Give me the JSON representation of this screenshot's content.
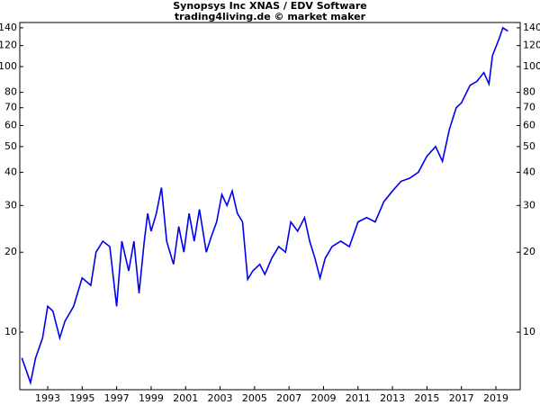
{
  "chart_data": {
    "type": "line",
    "title": "Synopsys Inc XNAS / EDV Software",
    "subtitle": "trading4living.de © market maker",
    "log_scale": true,
    "color": "#0000ee",
    "x": [
      1991.5,
      1992.0,
      1992.3,
      1992.7,
      1993.0,
      1993.3,
      1993.7,
      1994.0,
      1994.5,
      1995.0,
      1995.5,
      1995.8,
      1996.2,
      1996.6,
      1997.0,
      1997.3,
      1997.7,
      1998.0,
      1998.3,
      1998.6,
      1998.8,
      1999.0,
      1999.3,
      1999.6,
      1999.9,
      2000.3,
      2000.6,
      2000.9,
      2001.2,
      2001.5,
      2001.8,
      2002.2,
      2002.5,
      2002.8,
      2003.1,
      2003.4,
      2003.7,
      2004.0,
      2004.3,
      2004.6,
      2004.9,
      2005.3,
      2005.6,
      2006.0,
      2006.4,
      2006.8,
      2007.1,
      2007.5,
      2007.9,
      2008.2,
      2008.5,
      2008.8,
      2009.1,
      2009.5,
      2010.0,
      2010.5,
      2011.0,
      2011.5,
      2012.0,
      2012.5,
      2013.0,
      2013.5,
      2014.0,
      2014.5,
      2015.0,
      2015.5,
      2015.9,
      2016.3,
      2016.7,
      2017.0,
      2017.5,
      2017.9,
      2018.3,
      2018.6,
      2018.8,
      2019.2,
      2019.4,
      2019.7
    ],
    "values": [
      8.0,
      6.45,
      8,
      9.5,
      12.5,
      12,
      9.5,
      11,
      12.5,
      16,
      15,
      20,
      22,
      21,
      12.5,
      22,
      17,
      22,
      14,
      22,
      28,
      24,
      28,
      35,
      22,
      18,
      25,
      20,
      28,
      22,
      29,
      20,
      23,
      26,
      33,
      30,
      34,
      28,
      26,
      15.8,
      17,
      18,
      16.5,
      19,
      21,
      20,
      26,
      24,
      27,
      22,
      19,
      16,
      19,
      21,
      22,
      21,
      26,
      27,
      26,
      31,
      34,
      37,
      38,
      40,
      46,
      50,
      44,
      58,
      70,
      73,
      85,
      88,
      95,
      86,
      110,
      128,
      140,
      136
    ],
    "xlim": [
      1991.38,
      2020.41
    ],
    "xticks": [
      1993,
      1995,
      1997,
      1999,
      2001,
      2003,
      2005,
      2007,
      2009,
      2011,
      2013,
      2015,
      2017,
      2019
    ],
    "ylim": [
      6.07,
      146.6
    ],
    "yticks": [
      10,
      20,
      30,
      40,
      50,
      60,
      70,
      80,
      100,
      120,
      140
    ]
  }
}
